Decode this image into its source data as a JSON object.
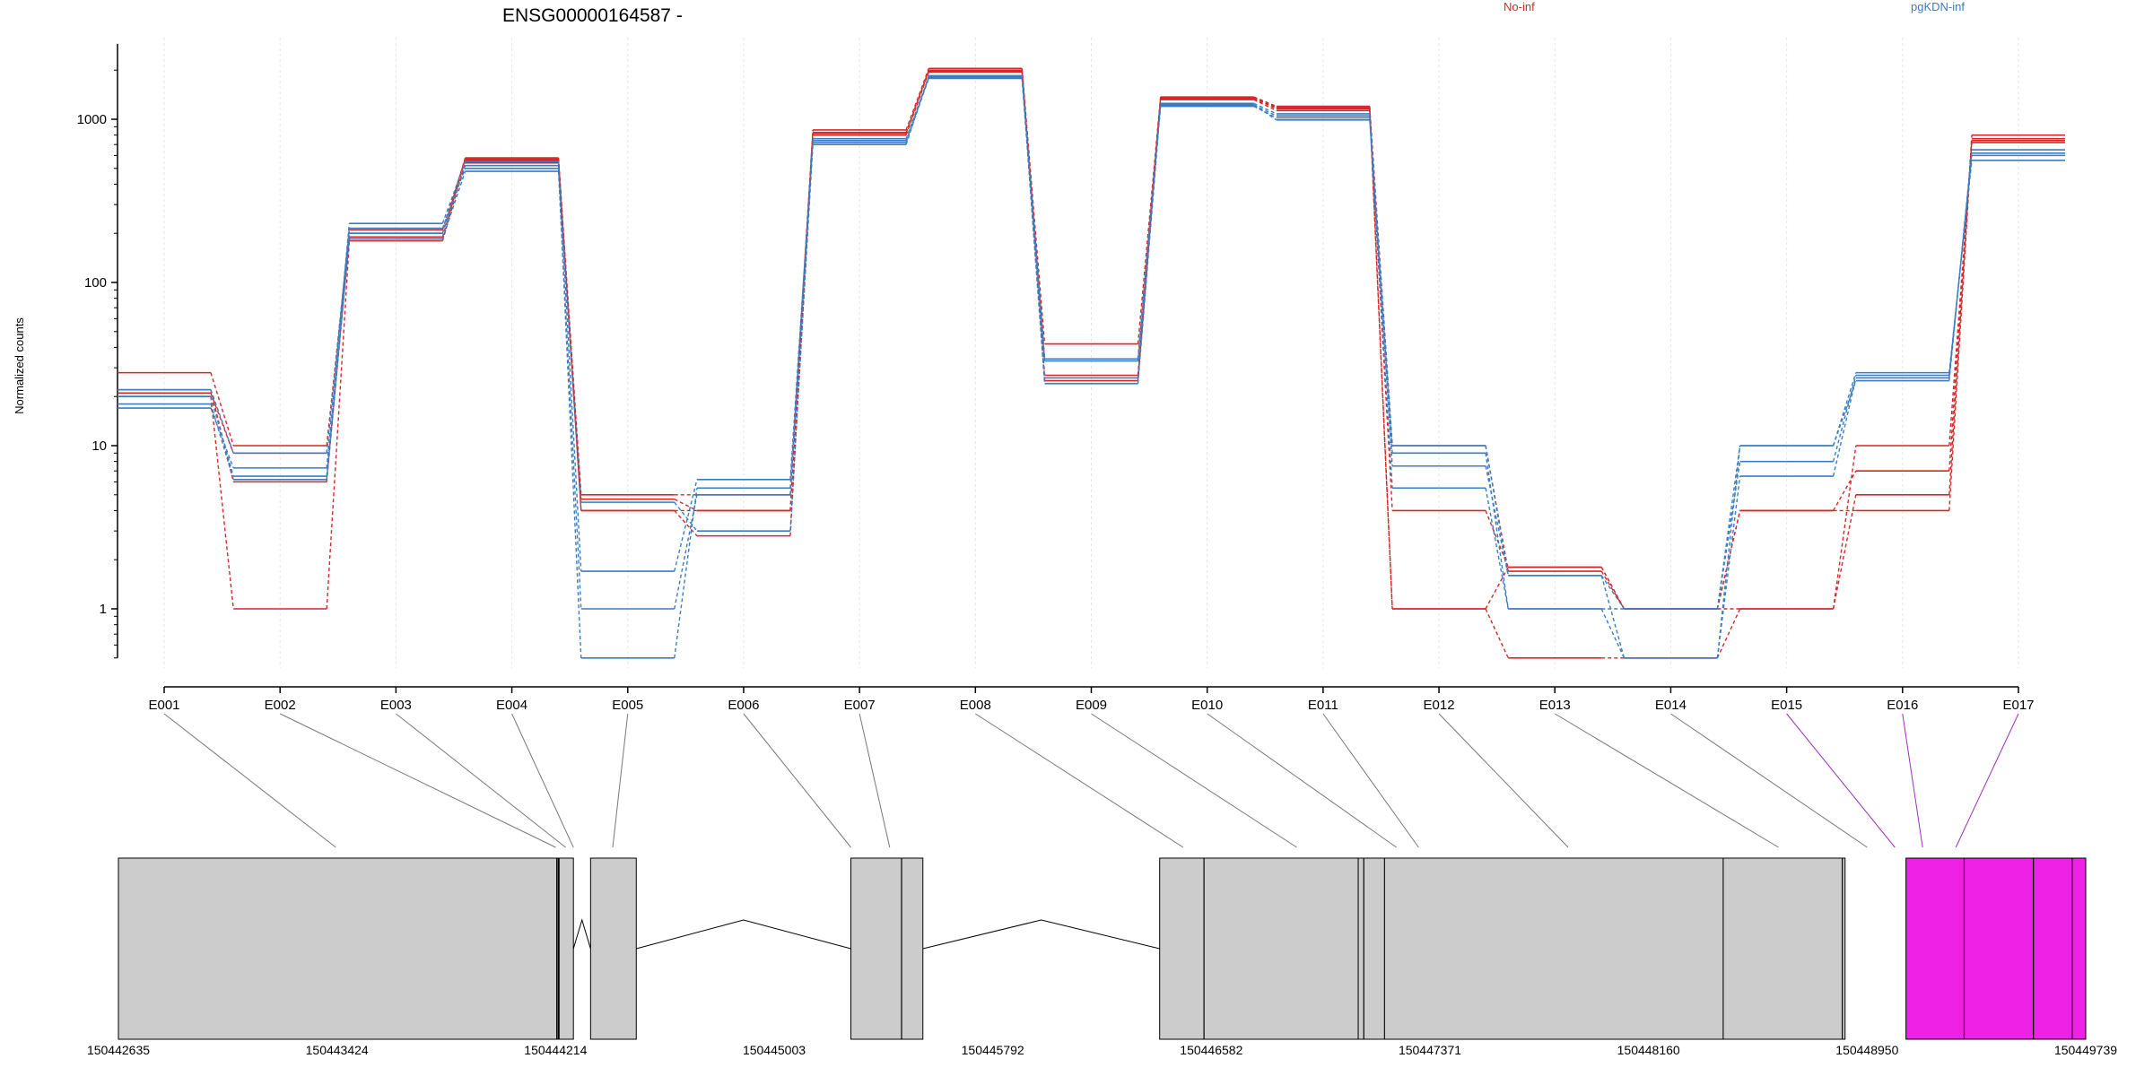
{
  "title": "ENSG00000164587 -",
  "legend": [
    {
      "label": "No-inf",
      "color": "#d62728"
    },
    {
      "label": "pgKDN-inf",
      "color": "#3a7dc1"
    }
  ],
  "chart_data": [
    {
      "type": "line",
      "y_scale": "log",
      "ylabel": "Normalized counts",
      "yticks": [
        1,
        10,
        100,
        1000
      ],
      "ylim": [
        0.5,
        2900
      ],
      "categories": [
        "E001",
        "E002",
        "E003",
        "E004",
        "E005",
        "E006",
        "E007",
        "E008",
        "E009",
        "E010",
        "E011",
        "E012",
        "E013",
        "E014",
        "E015",
        "E016",
        "E017"
      ],
      "series": [
        {
          "group": "No-inf",
          "color": "#d62728",
          "values": [
            28,
            10,
            200,
            580,
            5.0,
            5.0,
            860,
            2050,
            42,
            1370,
            1200,
            1.0,
            0.5,
            0.5,
            1.0,
            5.0,
            800
          ]
        },
        {
          "group": "No-inf",
          "color": "#d62728",
          "values": [
            22,
            6,
            190,
            560,
            4.0,
            4.0,
            820,
            1980,
            34,
            1340,
            1160,
            4.0,
            1.8,
            1.0,
            4.0,
            7.0,
            760
          ]
        },
        {
          "group": "No-inf",
          "color": "#d62728",
          "values": [
            20,
            1.0,
            180,
            540,
            4.0,
            2.8,
            800,
            1950,
            27,
            1320,
            1130,
            1.0,
            1.8,
            1.0,
            1.0,
            10,
            720
          ]
        },
        {
          "group": "No-inf",
          "color": "#d62728",
          "values": [
            21,
            9,
            210,
            570,
            4.7,
            4.0,
            830,
            2000,
            25,
            1350,
            1180,
            10,
            1.7,
            1.0,
            4.0,
            4.0,
            740
          ]
        },
        {
          "group": "pgKDN-inf",
          "color": "#3a7dc1",
          "values": [
            17,
            7.3,
            230,
            550,
            1.7,
            6.2,
            760,
            1820,
            26,
            1250,
            1080,
            10,
            1.6,
            1.0,
            10,
            28,
            560
          ]
        },
        {
          "group": "pgKDN-inf",
          "color": "#3a7dc1",
          "values": [
            18,
            6.2,
            185,
            480,
            1.0,
            5.0,
            720,
            1780,
            34,
            1200,
            1020,
            9,
            1.0,
            1.0,
            8,
            27,
            600
          ]
        },
        {
          "group": "pgKDN-inf",
          "color": "#3a7dc1",
          "values": [
            20,
            6.5,
            200,
            520,
            0.5,
            5.5,
            740,
            1800,
            24,
            1220,
            1050,
            5.5,
            1.0,
            0.5,
            6.5,
            26,
            620
          ]
        },
        {
          "group": "pgKDN-inf",
          "color": "#3a7dc1",
          "values": [
            22,
            9.0,
            215,
            500,
            4.5,
            3.0,
            700,
            1850,
            33,
            1230,
            990,
            7.5,
            1.6,
            0.5,
            10,
            25,
            650
          ]
        }
      ]
    }
  ],
  "gene_model": {
    "coordinate_ticks": [
      "150442635",
      "150443424",
      "150444214",
      "150445003",
      "150445792",
      "150446582",
      "150447371",
      "150448160",
      "150448950",
      "150449739"
    ],
    "coordinate_range": [
      150442635,
      150449739
    ],
    "exon_blocks": [
      {
        "start": 150442635,
        "end": 150444218
      },
      {
        "start": 150444218,
        "end": 150444278
      },
      {
        "start": 150444340,
        "end": 150444505
      },
      {
        "start": 150445280,
        "end": 150445540
      },
      {
        "start": 150446395,
        "end": 150447112
      },
      {
        "start": 150447112,
        "end": 150447207
      },
      {
        "start": 150447207,
        "end": 150448430
      },
      {
        "start": 150448430,
        "end": 150448870
      },
      {
        "start": 150449090,
        "end": 150449739,
        "highlight": true
      }
    ],
    "internal_divisions": [
      150444224,
      150445463,
      150446555,
      150447132,
      150448860,
      150449300,
      150449550,
      150449690
    ],
    "exon_anchor_positions": [
      150443420,
      150444214,
      150444250,
      150444278,
      150444420,
      150445280,
      150445420,
      150446480,
      150446890,
      150447250,
      150447330,
      150447870,
      150448630,
      150448950,
      150449050,
      150449150,
      150449270
    ],
    "highlight_color": "#f021e6",
    "exon_color": "#cccccc"
  }
}
